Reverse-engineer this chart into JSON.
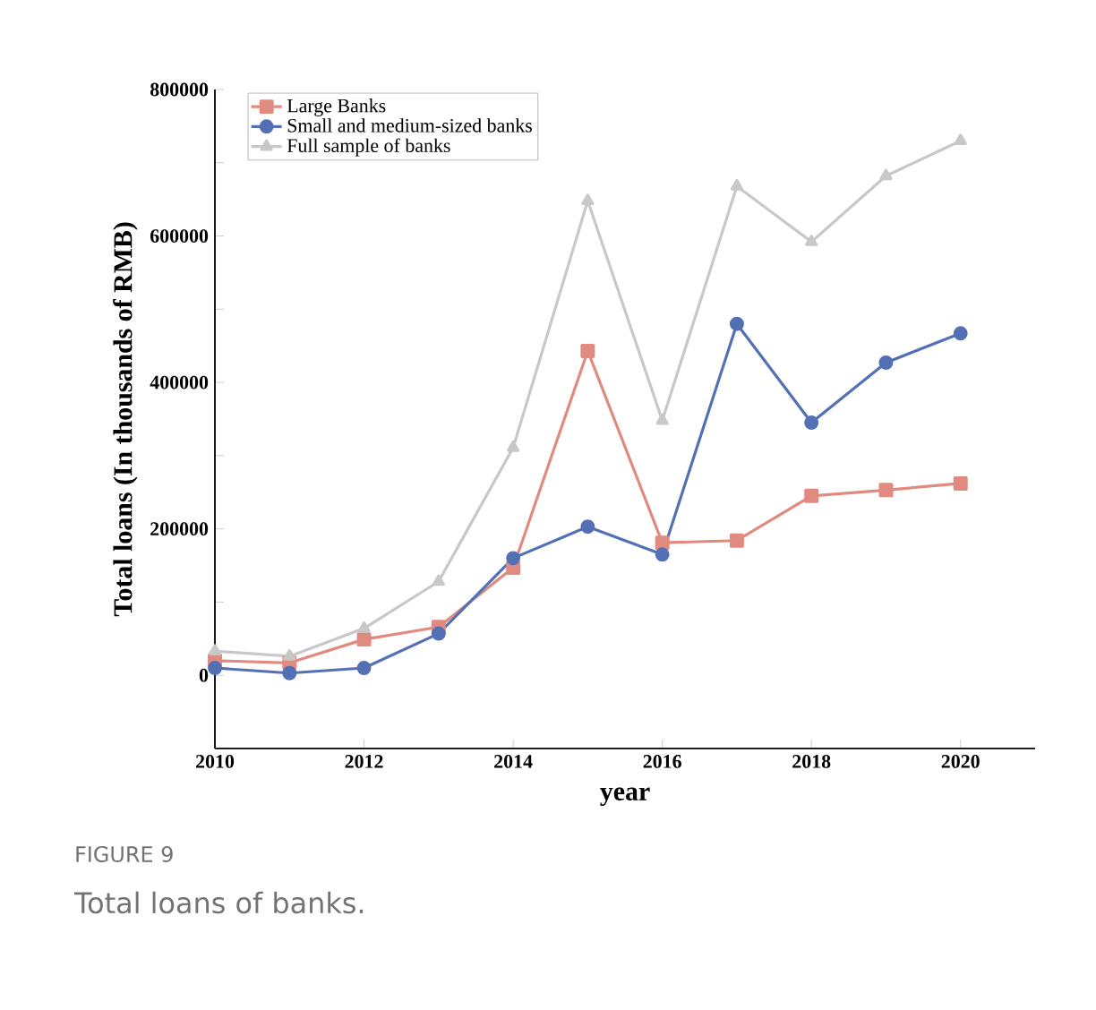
{
  "chart_data": {
    "type": "line",
    "xlabel": "year",
    "ylabel": "Total loans (In thousands of RMB)",
    "x": [
      2010,
      2011,
      2012,
      2013,
      2014,
      2015,
      2016,
      2017,
      2018,
      2019,
      2020
    ],
    "series": [
      {
        "name": "Large Banks",
        "color": "#e08a80",
        "marker": "square",
        "values": [
          20000,
          17000,
          49000,
          66000,
          147000,
          443000,
          181000,
          184000,
          245000,
          253000,
          262000
        ]
      },
      {
        "name": "Small and medium-sized banks",
        "color": "#5470b5",
        "marker": "circle",
        "values": [
          10000,
          3000,
          10000,
          57000,
          160000,
          203000,
          165000,
          480000,
          345000,
          427000,
          467000
        ]
      },
      {
        "name": "Full sample of banks",
        "color": "#c8c8c8",
        "marker": "triangle",
        "values": [
          33000,
          26000,
          64000,
          128000,
          311000,
          648000,
          348000,
          668000,
          592000,
          682000,
          730000
        ]
      }
    ],
    "xlim": [
      2010,
      2021
    ],
    "xticks": [
      2010,
      2012,
      2014,
      2016,
      2018,
      2020
    ],
    "ylim": [
      -100000,
      800000
    ],
    "yticks": [
      {
        "value": -100000,
        "label": null
      },
      0,
      {
        "value": 100000,
        "label": null
      },
      200000,
      {
        "value": 300000,
        "label": null
      },
      400000,
      {
        "value": 500000,
        "label": null
      },
      600000,
      {
        "value": 700000,
        "label": null
      },
      800000
    ],
    "legend": "top left",
    "grid": false,
    "annotations": [
      "FIGURE 9",
      "Total loans of banks."
    ]
  }
}
